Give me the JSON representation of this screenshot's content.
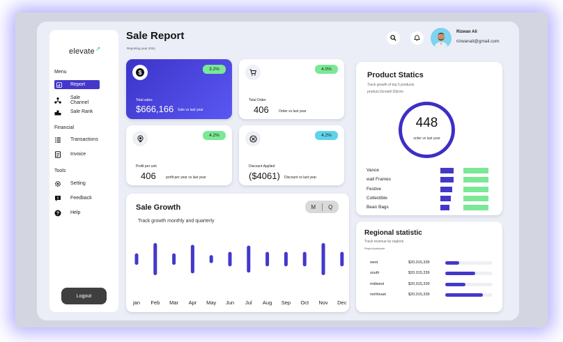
{
  "brand": {
    "name": "elevate",
    "logo_mark": "↗"
  },
  "sidebar": {
    "menu_title": "Menu",
    "menu_items": [
      {
        "label": "Report",
        "icon": "bar-chart-icon",
        "active": true
      },
      {
        "label": "Sale Channel",
        "icon": "network-icon"
      },
      {
        "label": "Sale Rank",
        "icon": "podium-icon"
      }
    ],
    "financial_title": "Financial",
    "financial_items": [
      {
        "label": "Transactions",
        "icon": "list-icon"
      },
      {
        "label": "Invoice",
        "icon": "invoice-icon"
      }
    ],
    "tools_title": "Tools",
    "tools_items": [
      {
        "label": "Setting",
        "icon": "gear-icon"
      },
      {
        "label": "Feedback",
        "icon": "feedback-icon"
      },
      {
        "label": "Help",
        "icon": "help-icon"
      }
    ],
    "logout_label": "Logout"
  },
  "header": {
    "title": "Sale Report",
    "subtitle": "Reporting year 2024",
    "user_name": "Rizwan Ali",
    "user_email": "rizwanali@gmail.com"
  },
  "stats": [
    {
      "label": "Total sales",
      "value": "$666,166",
      "note": "Sale vs last year",
      "badge": "3.2%",
      "icon": "dollar-icon"
    },
    {
      "label": "Total Order",
      "value": "406",
      "note": "Order vs last year",
      "badge": "4.0%",
      "icon": "cart-icon"
    },
    {
      "label": "Profit per unit",
      "value": "406",
      "note": "profit per year  vs last year",
      "badge": "4.2%",
      "icon": "coin-icon"
    },
    {
      "label": "Discount Applied",
      "value": "($4061)",
      "note": "Discount vs last year",
      "badge": "4.2%",
      "icon": "discount-icon"
    }
  ],
  "colors": {
    "accent": "#4338ca",
    "green_badge": "#7be895",
    "cyan_badge": "#5fd3e8",
    "progress_green": "#7be895"
  },
  "sale_growth": {
    "title": "Sale Growth",
    "subtitle": "Track growth monthly and quarterly",
    "toggle_m": "M",
    "toggle_q": "Q",
    "months": [
      "jan",
      "Feb",
      "Mar",
      "Apr",
      "May",
      "Jun",
      "Jul",
      "Aug",
      "Sep",
      "Oct",
      "Nov",
      "Dec"
    ],
    "bar_levels": [
      0.36,
      1.0,
      0.36,
      0.89,
      0.25,
      0.45,
      0.84,
      0.45,
      0.45,
      0.45,
      1.0,
      0.45
    ]
  },
  "product_statics": {
    "title": "Product Statics",
    "subtitle_line1": "Track growth of top 5 products",
    "subtitle_line2": "product |Growth ID|rom",
    "total": "448",
    "total_caption": "order vs last year",
    "rows": [
      {
        "label": "Vance",
        "blue": 0.48,
        "green": 0.8
      },
      {
        "label": "wall Frames",
        "blue": 0.48,
        "green": 0.8
      },
      {
        "label": "Festive",
        "blue": 0.43,
        "green": 0.8
      },
      {
        "label": "Collectible",
        "blue": 0.38,
        "green": 0.8
      },
      {
        "label": "Bean Bags",
        "blue": 0.33,
        "green": 0.8
      }
    ]
  },
  "regional": {
    "title": "Regional statistic",
    "subtitle_line1": "Track  revenue by regions",
    "subtitle_line2": "Region|sale|sale",
    "rows": [
      {
        "region": "west",
        "amount": "$20,015,339",
        "fill": 0.3
      },
      {
        "region": "south",
        "amount": "$20,015,339",
        "fill": 0.63
      },
      {
        "region": "midwest",
        "amount": "$20,015,339",
        "fill": 0.43
      },
      {
        "region": "northeast",
        "amount": "$20,015,339",
        "fill": 0.79
      }
    ]
  }
}
